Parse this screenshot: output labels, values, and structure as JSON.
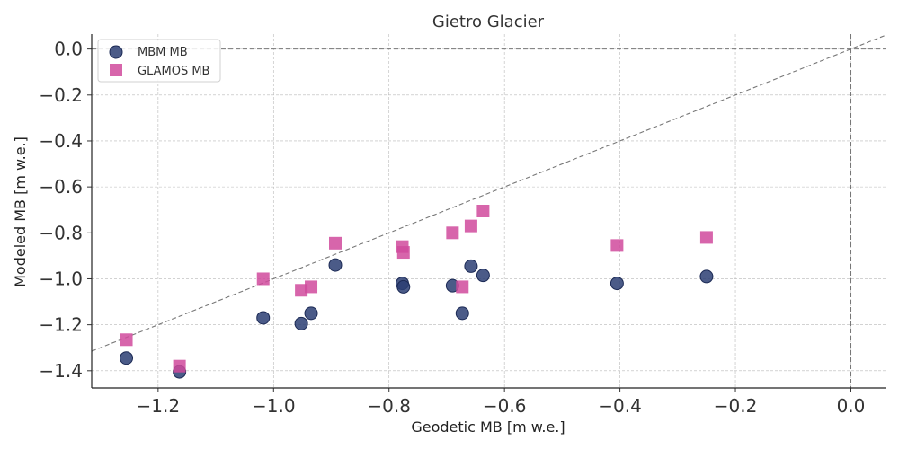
{
  "chart_data": {
    "type": "scatter",
    "title": "Gietro Glacier",
    "xlabel": "Geodetic MB [m w.e.]",
    "ylabel": "Modeled MB [m w.e.]",
    "xlim": [
      -1.315,
      0.06
    ],
    "ylim": [
      -1.475,
      0.065
    ],
    "xticks": [
      -1.2,
      -1.0,
      -0.8,
      -0.6,
      -0.4,
      -0.2,
      0.0
    ],
    "yticks": [
      0.0,
      -0.2,
      -0.4,
      -0.6,
      -0.8,
      -1.0,
      -1.2,
      -1.4
    ],
    "xtick_labels": [
      "−1.2",
      "−1.0",
      "−0.8",
      "−0.6",
      "−0.4",
      "−0.2",
      "0.0"
    ],
    "ytick_labels": [
      "0.0",
      "−0.2",
      "−0.4",
      "−0.6",
      "−0.8",
      "−1.0",
      "−1.2",
      "−1.4"
    ],
    "grid": true,
    "legend_position": "top-left",
    "reference_lines": [
      "1:1 line",
      "x = 0",
      "y = 0"
    ],
    "series": [
      {
        "name": "MBM MB",
        "marker": "circle",
        "color": "#2c3e73",
        "points": [
          {
            "x": -1.255,
            "y": -1.345
          },
          {
            "x": -1.163,
            "y": -1.405
          },
          {
            "x": -1.018,
            "y": -1.17
          },
          {
            "x": -0.952,
            "y": -1.195
          },
          {
            "x": -0.935,
            "y": -1.15
          },
          {
            "x": -0.893,
            "y": -0.94
          },
          {
            "x": -0.777,
            "y": -1.02
          },
          {
            "x": -0.775,
            "y": -1.035
          },
          {
            "x": -0.69,
            "y": -1.03
          },
          {
            "x": -0.673,
            "y": -1.15
          },
          {
            "x": -0.658,
            "y": -0.945
          },
          {
            "x": -0.637,
            "y": -0.985
          },
          {
            "x": -0.405,
            "y": -1.02
          },
          {
            "x": -0.25,
            "y": -0.99
          }
        ]
      },
      {
        "name": "GLAMOS MB",
        "marker": "square",
        "color": "#d04a9c",
        "points": [
          {
            "x": -1.255,
            "y": -1.265
          },
          {
            "x": -1.163,
            "y": -1.38
          },
          {
            "x": -1.018,
            "y": -1.0
          },
          {
            "x": -0.952,
            "y": -1.05
          },
          {
            "x": -0.935,
            "y": -1.035
          },
          {
            "x": -0.893,
            "y": -0.845
          },
          {
            "x": -0.777,
            "y": -0.86
          },
          {
            "x": -0.775,
            "y": -0.885
          },
          {
            "x": -0.69,
            "y": -0.8
          },
          {
            "x": -0.673,
            "y": -1.035
          },
          {
            "x": -0.658,
            "y": -0.77
          },
          {
            "x": -0.637,
            "y": -0.705
          },
          {
            "x": -0.405,
            "y": -0.855
          },
          {
            "x": -0.25,
            "y": -0.82
          }
        ]
      }
    ]
  }
}
